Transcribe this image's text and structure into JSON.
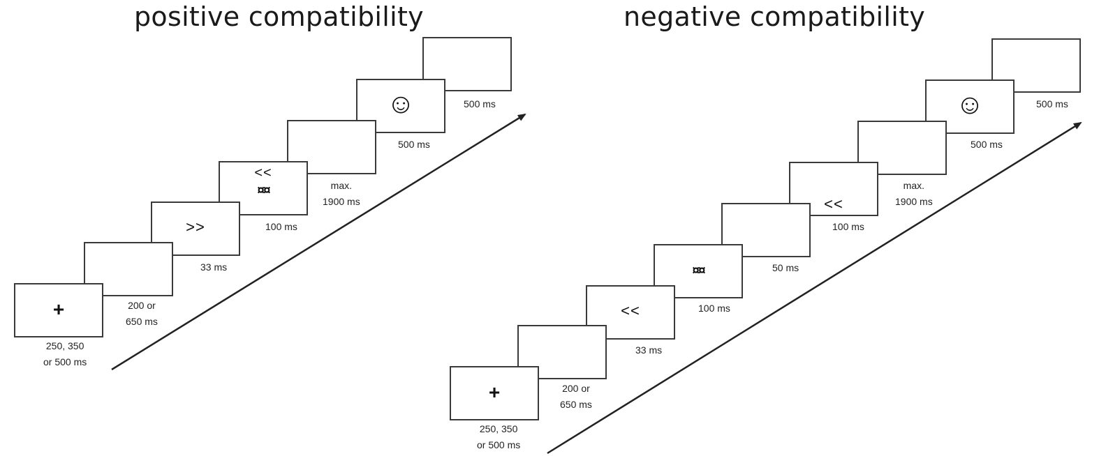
{
  "panels": [
    {
      "title": "positive compatibility",
      "frames": [
        {
          "symbol": "+",
          "duration": "250, 350\nor 500 ms"
        },
        {
          "symbol": "",
          "duration": "200 or\n650 ms"
        },
        {
          "symbol": ">>",
          "duration": "33 ms"
        },
        {
          "symbol": "<<",
          "symbol2": "¤¤",
          "duration": "100 ms"
        },
        {
          "symbol": "",
          "duration": "max.\n1900 ms"
        },
        {
          "symbol": "☺",
          "duration": "500 ms"
        },
        {
          "symbol": "",
          "duration": "500 ms"
        }
      ]
    },
    {
      "title": "negative compatibility",
      "frames": [
        {
          "symbol": "+",
          "duration": "250, 350\nor 500 ms"
        },
        {
          "symbol": "",
          "duration": "200 or\n650 ms"
        },
        {
          "symbol": "<<",
          "duration": "33 ms"
        },
        {
          "symbol": "¤¤",
          "duration": "100 ms"
        },
        {
          "symbol": "",
          "duration": "50 ms"
        },
        {
          "symbol": "<<",
          "duration": "100 ms"
        },
        {
          "symbol": "",
          "duration": "max.\n1900 ms"
        },
        {
          "symbol": "☺",
          "duration": "500 ms"
        },
        {
          "symbol": "",
          "duration": "500 ms"
        }
      ]
    }
  ]
}
